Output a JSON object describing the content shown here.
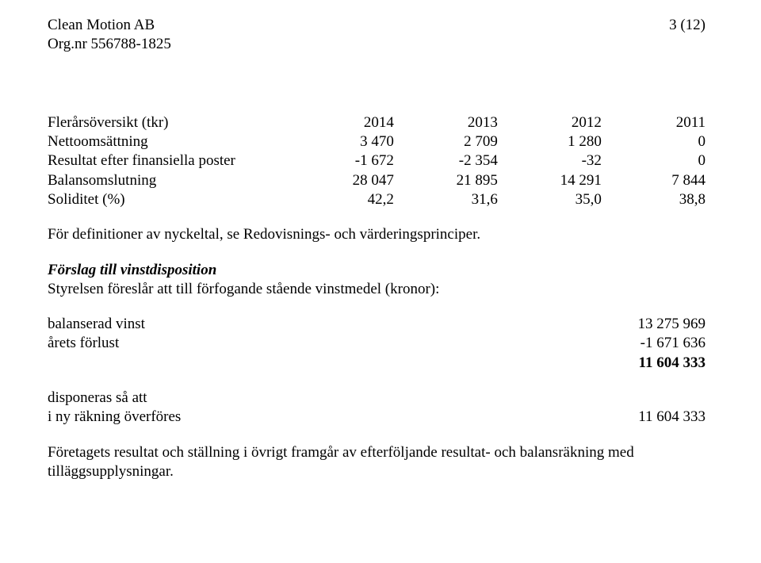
{
  "header": {
    "company": "Clean Motion AB",
    "orgnr": "Org.nr 556788-1825",
    "pagenum": "3 (12)"
  },
  "overview": {
    "title": "Flerårsöversikt (tkr)",
    "years": [
      "2014",
      "2013",
      "2012",
      "2011"
    ],
    "rows": [
      {
        "label": "Nettoomsättning",
        "v": [
          "3 470",
          "2 709",
          "1 280",
          "0"
        ]
      },
      {
        "label": "Resultat efter finansiella poster",
        "v": [
          "-1 672",
          "-2 354",
          "-32",
          "0"
        ]
      },
      {
        "label": "Balansomslutning",
        "v": [
          "28 047",
          "21 895",
          "14 291",
          "7 844"
        ]
      },
      {
        "label": "Soliditet (%)",
        "v": [
          "42,2",
          "31,6",
          "35,0",
          "38,8"
        ]
      }
    ],
    "note": "För definitioner av nyckeltal, se Redovisnings- och värderingsprinciper."
  },
  "disposition": {
    "heading": "Förslag till vinstdisposition",
    "intro": "Styrelsen föreslår att till förfogande stående vinstmedel (kronor):",
    "lines": [
      {
        "label": "balanserad vinst",
        "value": "13 275 969"
      },
      {
        "label": "årets förlust",
        "value": "-1 671 636"
      }
    ],
    "total": "11 604 333",
    "disp_heading": "disponeras så att",
    "disp_line": {
      "label": "i ny räkning överföres",
      "value": "11 604 333"
    },
    "footer": "Företagets resultat och ställning i övrigt framgår av efterföljande resultat- och balansräkning med tilläggsupplysningar."
  }
}
